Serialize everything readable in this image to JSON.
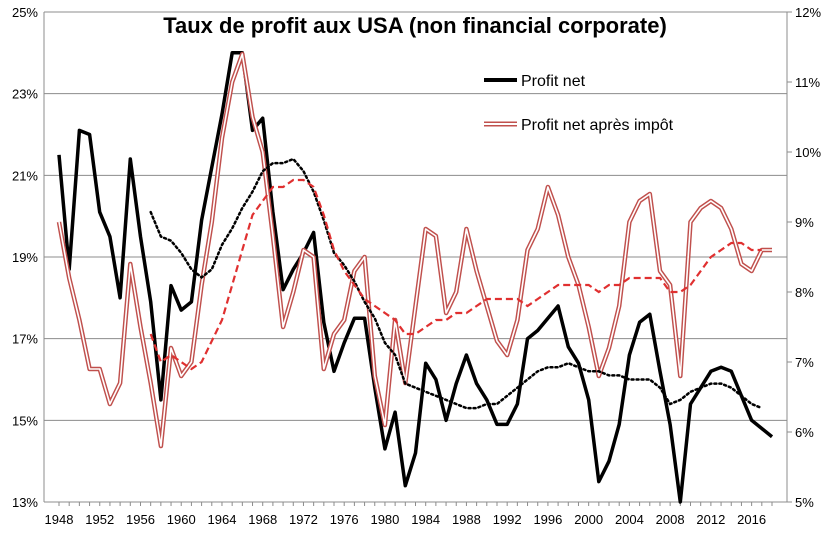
{
  "chart_data": {
    "type": "line",
    "title": "Taux de profit aux USA (non financial corporate)",
    "x_ticks": [
      "1948",
      "1952",
      "1956",
      "1960",
      "1964",
      "1968",
      "1972",
      "1976",
      "1980",
      "1984",
      "1988",
      "1992",
      "1996",
      "2000",
      "2004",
      "2008",
      "2012",
      "2016"
    ],
    "x_range": [
      1948,
      2018
    ],
    "y_left": {
      "range": [
        13,
        25
      ],
      "tick_values": [
        13,
        15,
        17,
        19,
        21,
        23,
        25
      ],
      "tick_labels": [
        "13%",
        "15%",
        "17%",
        "19%",
        "21%",
        "23%",
        "25%"
      ]
    },
    "y_right": {
      "range": [
        5,
        12
      ],
      "tick_values": [
        5,
        6,
        7,
        8,
        9,
        10,
        11,
        12
      ],
      "tick_labels": [
        "5%",
        "6%",
        "7%",
        "8%",
        "9%",
        "10%",
        "11%",
        "12%"
      ]
    },
    "grid": "horizontal",
    "legend_position": "top-right",
    "series": [
      {
        "name": "Profit net",
        "axis": "left",
        "style": "solid-black-thick",
        "color": "#000000",
        "x": [
          1948,
          1949,
          1950,
          1951,
          1952,
          1953,
          1954,
          1955,
          1956,
          1957,
          1958,
          1959,
          1960,
          1961,
          1962,
          1963,
          1964,
          1965,
          1966,
          1967,
          1968,
          1969,
          1970,
          1971,
          1972,
          1973,
          1974,
          1975,
          1976,
          1977,
          1978,
          1979,
          1980,
          1981,
          1982,
          1983,
          1984,
          1985,
          1986,
          1987,
          1988,
          1989,
          1990,
          1991,
          1992,
          1993,
          1994,
          1995,
          1996,
          1997,
          1998,
          1999,
          2000,
          2001,
          2002,
          2003,
          2004,
          2005,
          2006,
          2007,
          2008,
          2009,
          2010,
          2011,
          2012,
          2013,
          2014,
          2015,
          2016,
          2017,
          2018
        ],
        "values": [
          21.5,
          18.7,
          22.1,
          22.0,
          20.1,
          19.5,
          18.0,
          21.4,
          19.5,
          17.9,
          15.5,
          18.3,
          17.7,
          17.9,
          19.9,
          21.2,
          22.5,
          24.0,
          24.0,
          22.1,
          22.4,
          20.1,
          18.2,
          18.7,
          19.1,
          19.6,
          17.4,
          16.2,
          16.9,
          17.5,
          17.5,
          15.8,
          14.3,
          15.2,
          13.4,
          14.2,
          16.4,
          16.0,
          15.0,
          15.9,
          16.6,
          15.9,
          15.5,
          14.9,
          14.9,
          15.4,
          17.0,
          17.2,
          17.5,
          17.8,
          16.8,
          16.4,
          15.5,
          13.5,
          14.0,
          14.9,
          16.6,
          17.4,
          17.6,
          16.2,
          14.9,
          13.0,
          15.4,
          15.8,
          16.2,
          16.3,
          16.2,
          15.6,
          15.0,
          14.8,
          14.6
        ]
      },
      {
        "name": "Profit net après impôt",
        "axis": "right",
        "style": "double-red",
        "color": "#c0504d",
        "x": [
          1948,
          1949,
          1950,
          1951,
          1952,
          1953,
          1954,
          1955,
          1956,
          1957,
          1958,
          1959,
          1960,
          1961,
          1962,
          1963,
          1964,
          1965,
          1966,
          1967,
          1968,
          1969,
          1970,
          1971,
          1972,
          1973,
          1974,
          1975,
          1976,
          1977,
          1978,
          1979,
          1980,
          1981,
          1982,
          1983,
          1984,
          1985,
          1986,
          1987,
          1988,
          1989,
          1990,
          1991,
          1992,
          1993,
          1994,
          1995,
          1996,
          1997,
          1998,
          1999,
          2000,
          2001,
          2002,
          2003,
          2004,
          2005,
          2006,
          2007,
          2008,
          2009,
          2010,
          2011,
          2012,
          2013,
          2014,
          2015,
          2016,
          2017,
          2018
        ],
        "values": [
          9.0,
          8.2,
          7.6,
          6.9,
          6.9,
          6.4,
          6.7,
          8.4,
          7.5,
          6.7,
          5.8,
          7.2,
          6.8,
          7.0,
          8.1,
          9.0,
          10.2,
          11.0,
          11.4,
          10.5,
          10.0,
          8.8,
          7.5,
          8.0,
          8.6,
          8.5,
          6.9,
          7.4,
          7.6,
          8.3,
          8.5,
          6.8,
          6.1,
          7.6,
          6.7,
          7.8,
          8.9,
          8.8,
          7.7,
          8.0,
          8.9,
          8.3,
          7.8,
          7.3,
          7.1,
          7.6,
          8.6,
          8.9,
          9.5,
          9.1,
          8.5,
          8.1,
          7.5,
          6.8,
          7.2,
          7.8,
          9.0,
          9.3,
          9.4,
          8.3,
          8.1,
          6.8,
          9.0,
          9.2,
          9.3,
          9.2,
          8.9,
          8.4,
          8.3,
          8.6,
          8.6
        ]
      },
      {
        "name": "",
        "axis": "left",
        "style": "dotted-black",
        "color": "#000000",
        "x": [
          1957,
          1958,
          1959,
          1960,
          1961,
          1962,
          1963,
          1964,
          1965,
          1966,
          1967,
          1968,
          1969,
          1970,
          1971,
          1972,
          1973,
          1974,
          1975,
          1976,
          1977,
          1978,
          1979,
          1980,
          1981,
          1982,
          1983,
          1984,
          1985,
          1986,
          1987,
          1988,
          1989,
          1990,
          1991,
          1992,
          1993,
          1994,
          1995,
          1996,
          1997,
          1998,
          1999,
          2000,
          2001,
          2002,
          2003,
          2004,
          2005,
          2006,
          2007,
          2008,
          2009,
          2010,
          2011,
          2012,
          2013,
          2014,
          2015,
          2016,
          2017
        ],
        "values": [
          20.1,
          19.5,
          19.4,
          19.1,
          18.7,
          18.5,
          18.7,
          19.3,
          19.7,
          20.2,
          20.6,
          21.1,
          21.3,
          21.3,
          21.4,
          21.1,
          20.6,
          19.9,
          19.1,
          18.8,
          18.4,
          17.9,
          17.5,
          16.9,
          16.6,
          15.9,
          15.8,
          15.7,
          15.6,
          15.5,
          15.4,
          15.3,
          15.3,
          15.4,
          15.4,
          15.6,
          15.8,
          16.0,
          16.2,
          16.3,
          16.3,
          16.4,
          16.3,
          16.2,
          16.2,
          16.1,
          16.1,
          16.0,
          16.0,
          16.0,
          15.8,
          15.4,
          15.5,
          15.7,
          15.8,
          15.9,
          15.9,
          15.8,
          15.6,
          15.4,
          15.3
        ]
      },
      {
        "name": "",
        "axis": "right",
        "style": "dashed-red",
        "color": "#e03030",
        "x": [
          1957,
          1958,
          1959,
          1960,
          1961,
          1962,
          1963,
          1964,
          1965,
          1966,
          1967,
          1968,
          1969,
          1970,
          1971,
          1972,
          1973,
          1974,
          1975,
          1976,
          1977,
          1978,
          1979,
          1980,
          1981,
          1982,
          1983,
          1984,
          1985,
          1986,
          1987,
          1988,
          1989,
          1990,
          1991,
          1992,
          1993,
          1994,
          1995,
          1996,
          1997,
          1998,
          1999,
          2000,
          2001,
          2002,
          2003,
          2004,
          2005,
          2006,
          2007,
          2008,
          2009,
          2010,
          2011,
          2012,
          2013,
          2014,
          2015,
          2016,
          2017
        ],
        "values": [
          7.4,
          7.0,
          7.1,
          7.0,
          6.9,
          7.0,
          7.3,
          7.6,
          8.1,
          8.6,
          9.1,
          9.3,
          9.5,
          9.5,
          9.6,
          9.6,
          9.5,
          9.1,
          8.6,
          8.3,
          8.1,
          7.9,
          7.8,
          7.7,
          7.6,
          7.4,
          7.4,
          7.5,
          7.6,
          7.6,
          7.7,
          7.7,
          7.8,
          7.9,
          7.9,
          7.9,
          7.9,
          7.8,
          7.9,
          8.0,
          8.1,
          8.1,
          8.1,
          8.1,
          8.0,
          8.1,
          8.1,
          8.2,
          8.2,
          8.2,
          8.2,
          8.0,
          8.0,
          8.1,
          8.3,
          8.5,
          8.6,
          8.7,
          8.7,
          8.6,
          8.6
        ]
      }
    ]
  }
}
